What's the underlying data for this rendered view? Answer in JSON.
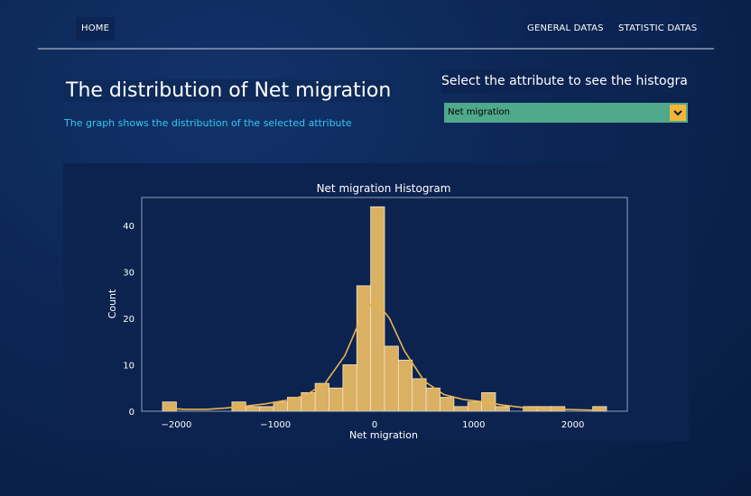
{
  "nav": {
    "home": "HOME",
    "general": "GENERAL DATAS",
    "statistic": "STATISTIC DATAS"
  },
  "header": {
    "title": "The distribution of Net migration",
    "subtitle": "The graph shows the distribution of the selected attribute"
  },
  "selector": {
    "label": "Select the attribute to see the histogram",
    "value": "Net migration"
  },
  "colors": {
    "bar_fill": "#dab062",
    "kde_line": "#e8b34f",
    "accent_text": "#32c9f2",
    "select_bg": "#4fa98a",
    "select_arrow_bg": "#f4b53a"
  },
  "chart_data": {
    "type": "bar",
    "title": "Net migration Histogram",
    "xlabel": "Net migration",
    "ylabel": "Count",
    "xlim": [
      -2350,
      2550
    ],
    "ylim": [
      0,
      46
    ],
    "xticks": [
      -2000,
      -1000,
      0,
      1000,
      2000
    ],
    "xtick_labels": [
      "−2000",
      "−1000",
      "0",
      "1000",
      "2000"
    ],
    "yticks": [
      0,
      10,
      20,
      30,
      40
    ],
    "grid": false,
    "bins": [
      {
        "x0": -2140,
        "x1": -2000,
        "count": 2
      },
      {
        "x0": -2000,
        "x1": -1860,
        "count": 0
      },
      {
        "x0": -1860,
        "x1": -1720,
        "count": 0
      },
      {
        "x0": -1720,
        "x1": -1580,
        "count": 0
      },
      {
        "x0": -1580,
        "x1": -1440,
        "count": 0
      },
      {
        "x0": -1440,
        "x1": -1300,
        "count": 2
      },
      {
        "x0": -1300,
        "x1": -1160,
        "count": 1
      },
      {
        "x0": -1160,
        "x1": -1020,
        "count": 1
      },
      {
        "x0": -1020,
        "x1": -880,
        "count": 2
      },
      {
        "x0": -880,
        "x1": -740,
        "count": 3
      },
      {
        "x0": -740,
        "x1": -600,
        "count": 4
      },
      {
        "x0": -600,
        "x1": -460,
        "count": 6
      },
      {
        "x0": -460,
        "x1": -320,
        "count": 5
      },
      {
        "x0": -320,
        "x1": -180,
        "count": 10
      },
      {
        "x0": -180,
        "x1": -40,
        "count": 27
      },
      {
        "x0": -40,
        "x1": 100,
        "count": 44
      },
      {
        "x0": 100,
        "x1": 240,
        "count": 14
      },
      {
        "x0": 240,
        "x1": 380,
        "count": 11
      },
      {
        "x0": 380,
        "x1": 520,
        "count": 7
      },
      {
        "x0": 520,
        "x1": 660,
        "count": 5
      },
      {
        "x0": 660,
        "x1": 800,
        "count": 3
      },
      {
        "x0": 800,
        "x1": 940,
        "count": 1
      },
      {
        "x0": 940,
        "x1": 1080,
        "count": 2
      },
      {
        "x0": 1080,
        "x1": 1220,
        "count": 4
      },
      {
        "x0": 1220,
        "x1": 1360,
        "count": 1
      },
      {
        "x0": 1360,
        "x1": 1500,
        "count": 0
      },
      {
        "x0": 1500,
        "x1": 1640,
        "count": 1
      },
      {
        "x0": 1640,
        "x1": 1780,
        "count": 1
      },
      {
        "x0": 1780,
        "x1": 1920,
        "count": 1
      },
      {
        "x0": 1920,
        "x1": 2060,
        "count": 0
      },
      {
        "x0": 2060,
        "x1": 2200,
        "count": 0
      },
      {
        "x0": 2200,
        "x1": 2340,
        "count": 1
      }
    ],
    "kde": [
      {
        "x": -2100,
        "y": 0.6
      },
      {
        "x": -1900,
        "y": 0.4
      },
      {
        "x": -1700,
        "y": 0.4
      },
      {
        "x": -1500,
        "y": 0.7
      },
      {
        "x": -1300,
        "y": 1.1
      },
      {
        "x": -1100,
        "y": 1.6
      },
      {
        "x": -900,
        "y": 2.3
      },
      {
        "x": -700,
        "y": 3.4
      },
      {
        "x": -500,
        "y": 6.0
      },
      {
        "x": -300,
        "y": 12.0
      },
      {
        "x": -150,
        "y": 19.5
      },
      {
        "x": 0,
        "y": 24.0
      },
      {
        "x": 150,
        "y": 20.0
      },
      {
        "x": 300,
        "y": 13.0
      },
      {
        "x": 500,
        "y": 6.5
      },
      {
        "x": 700,
        "y": 3.6
      },
      {
        "x": 900,
        "y": 2.5
      },
      {
        "x": 1100,
        "y": 2.0
      },
      {
        "x": 1300,
        "y": 1.3
      },
      {
        "x": 1500,
        "y": 0.8
      },
      {
        "x": 1700,
        "y": 0.6
      },
      {
        "x": 1900,
        "y": 0.4
      },
      {
        "x": 2100,
        "y": 0.3
      },
      {
        "x": 2300,
        "y": 0.2
      }
    ]
  }
}
